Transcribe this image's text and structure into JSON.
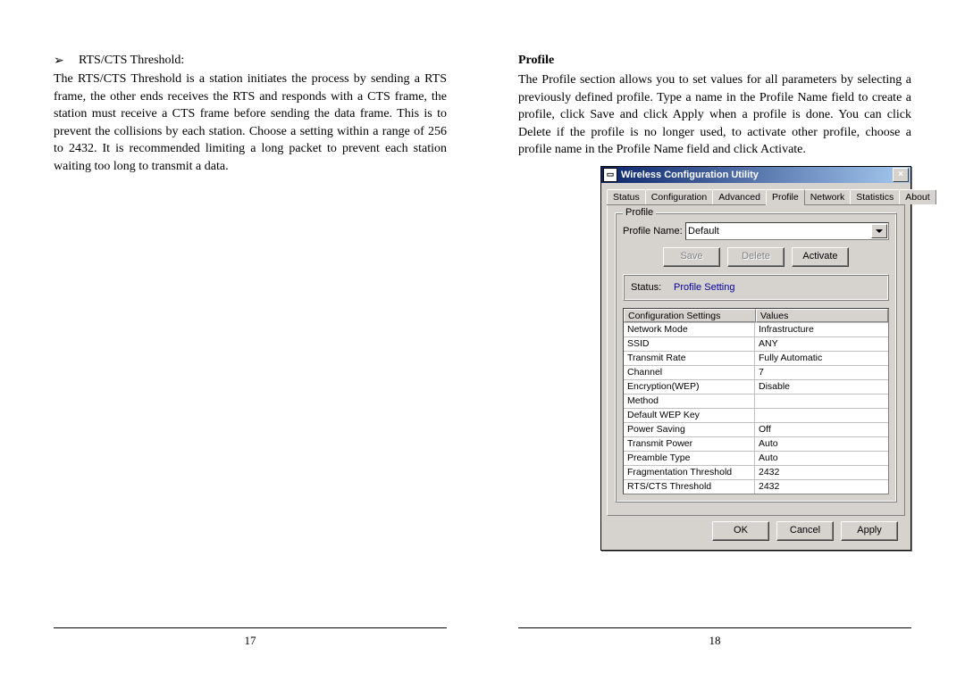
{
  "left": {
    "bullet_glyph": "➢",
    "bullet_label": "RTS/CTS Threshold:",
    "body": "The RTS/CTS Threshold is a station initiates the process by sending a RTS frame, the other ends receives the RTS and responds with a CTS frame, the station must receive a CTS frame before sending the data frame. This is to prevent the collisions by each station. Choose a setting within a range of 256 to 2432. It is recommended limiting a long packet to prevent each station waiting too long to transmit a data.",
    "page_num": "17"
  },
  "right": {
    "heading": "Profile",
    "body": "The Profile section allows you to set values for all parameters by selecting a previously defined profile. Type a name in the Profile Name field to create a profile, click Save and click Apply when a profile is done. You can click Delete if the profile is no longer used, to activate other profile, choose a profile name in the Profile Name field and click Activate.",
    "page_num": "18"
  },
  "dialog": {
    "title": "Wireless Configuration Utility",
    "close_label": "×",
    "tabs": [
      "Status",
      "Configuration",
      "Advanced",
      "Profile",
      "Network",
      "Statistics",
      "About"
    ],
    "active_tab_index": 3,
    "group_legend": "Profile",
    "profile_name_label": "Profile Name:",
    "profile_name_value": "Default",
    "save_label": "Save",
    "delete_label": "Delete",
    "activate_label": "Activate",
    "status_label": "Status:",
    "status_value": "Profile Setting",
    "grid_headers": [
      "Configuration Settings",
      "Values"
    ],
    "grid_rows": [
      [
        "Network Mode",
        "Infrastructure"
      ],
      [
        "SSID",
        "ANY"
      ],
      [
        "Transmit Rate",
        "Fully Automatic"
      ],
      [
        "Channel",
        "7"
      ],
      [
        "Encryption(WEP)",
        "Disable"
      ],
      [
        "Method",
        ""
      ],
      [
        "Default WEP Key",
        ""
      ],
      [
        "Power Saving",
        "Off"
      ],
      [
        "Transmit Power",
        "Auto"
      ],
      [
        "Preamble Type",
        "Auto"
      ],
      [
        "Fragmentation Threshold",
        "2432"
      ],
      [
        "RTS/CTS Threshold",
        "2432"
      ]
    ],
    "ok_label": "OK",
    "cancel_label": "Cancel",
    "apply_label": "Apply"
  }
}
